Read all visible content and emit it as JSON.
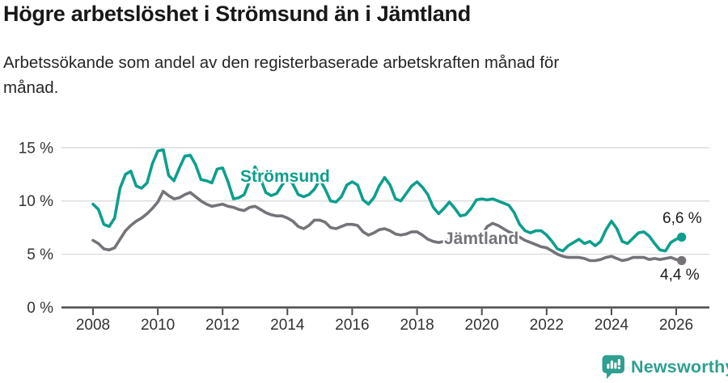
{
  "title": "Högre arbetslöshet i Strömsund än i Jämtland",
  "subtitle": "Arbetssökande som andel av den registerbaserade arbetskraften månad för\nmånad.",
  "colors": {
    "stromsund_teal": "#0d9e8d",
    "jamtland_gray": "#757379",
    "brand_teal": "#2e9f90",
    "grid": "#dadada",
    "axis": "#4c4c4f",
    "axis_text": "#333333",
    "value_label_text": "#1a1a1a"
  },
  "footer": {
    "brand": "Newsworthy",
    "logo_icon": "bar-chart-speech-bubble-icon"
  },
  "chart_data": {
    "type": "line",
    "title": "Högre arbetslöshet i Strömsund än i Jämtland",
    "subtitle": "Arbetssökande som andel av den registerbaserade arbetskraften månad för månad.",
    "x_range_note": "monthly data Jan 2008 – early 2026, sampled bimonthly (Jan, Mar, May, Jul, Sep, Nov)",
    "start_year": 2008,
    "points_per_year": 6,
    "grid": "horizontal",
    "ylim": [
      0,
      15.8
    ],
    "y_gridlines": [
      5,
      10,
      15
    ],
    "y_ticks": [
      {
        "value": 0,
        "label": "0 %"
      },
      {
        "value": 5,
        "label": "5 %"
      },
      {
        "value": 10,
        "label": "10 %"
      },
      {
        "value": 15,
        "label": "15 %"
      }
    ],
    "x_ticks": [
      "2008",
      "2010",
      "2012",
      "2014",
      "2016",
      "2018",
      "2020",
      "2022",
      "2024",
      "2026"
    ],
    "legend_position": "inline-labels",
    "series": [
      {
        "name": "Strömsund",
        "slug": "stromsund",
        "color": "#0d9e8d",
        "end_label": "6,6 %",
        "end_value": 6.6,
        "values": [
          9.7,
          9.2,
          7.8,
          7.6,
          8.4,
          11.2,
          12.5,
          12.8,
          11.4,
          11.2,
          11.7,
          13.5,
          14.7,
          14.8,
          12.4,
          11.9,
          13.1,
          14.2,
          14.3,
          13.4,
          12.0,
          11.9,
          11.7,
          13.0,
          13.1,
          11.8,
          10.2,
          10.3,
          10.6,
          11.9,
          13.2,
          12.1,
          10.8,
          10.5,
          10.7,
          11.5,
          12.1,
          11.6,
          10.6,
          10.4,
          10.6,
          11.1,
          12.0,
          11.1,
          10.0,
          9.9,
          10.4,
          11.5,
          11.8,
          11.5,
          10.1,
          9.7,
          10.3,
          11.4,
          12.2,
          11.5,
          10.2,
          10.0,
          10.7,
          11.4,
          11.8,
          11.3,
          10.6,
          9.4,
          8.8,
          9.3,
          9.9,
          9.3,
          8.6,
          8.7,
          9.3,
          10.1,
          10.2,
          10.1,
          10.2,
          10.0,
          9.8,
          9.6,
          8.9,
          7.8,
          7.2,
          7.0,
          7.2,
          7.2,
          6.8,
          6.2,
          5.5,
          5.3,
          5.8,
          6.1,
          6.4,
          6.0,
          6.2,
          5.8,
          6.2,
          7.3,
          8.1,
          7.4,
          6.2,
          6.0,
          6.5,
          7.0,
          7.1,
          6.7,
          6.0,
          5.4,
          5.3,
          6.1,
          6.4,
          6.6
        ]
      },
      {
        "name": "Jämtland",
        "slug": "jamtland",
        "color": "#757379",
        "end_label": "4,4 %",
        "end_value": 4.4,
        "values": [
          6.3,
          6.0,
          5.5,
          5.4,
          5.6,
          6.4,
          7.2,
          7.7,
          8.1,
          8.4,
          8.8,
          9.3,
          9.9,
          10.9,
          10.5,
          10.2,
          10.3,
          10.6,
          10.8,
          10.4,
          10.0,
          9.7,
          9.5,
          9.6,
          9.7,
          9.5,
          9.4,
          9.2,
          9.1,
          9.4,
          9.5,
          9.2,
          8.9,
          8.7,
          8.6,
          8.6,
          8.4,
          8.1,
          7.6,
          7.4,
          7.7,
          8.2,
          8.2,
          8.0,
          7.5,
          7.4,
          7.6,
          7.8,
          7.8,
          7.7,
          7.1,
          6.8,
          7.0,
          7.3,
          7.4,
          7.2,
          6.9,
          6.8,
          6.9,
          7.1,
          7.1,
          6.8,
          6.4,
          6.2,
          6.1,
          6.2,
          6.4,
          6.3,
          6.1,
          6.1,
          6.2,
          6.5,
          6.8,
          7.6,
          7.9,
          7.7,
          7.4,
          7.1,
          6.9,
          6.6,
          6.3,
          6.1,
          5.9,
          5.7,
          5.6,
          5.3,
          5.0,
          4.8,
          4.7,
          4.7,
          4.7,
          4.6,
          4.4,
          4.4,
          4.5,
          4.7,
          4.8,
          4.6,
          4.4,
          4.5,
          4.7,
          4.7,
          4.7,
          4.5,
          4.6,
          4.5,
          4.6,
          4.7,
          4.5,
          4.4
        ]
      }
    ]
  }
}
